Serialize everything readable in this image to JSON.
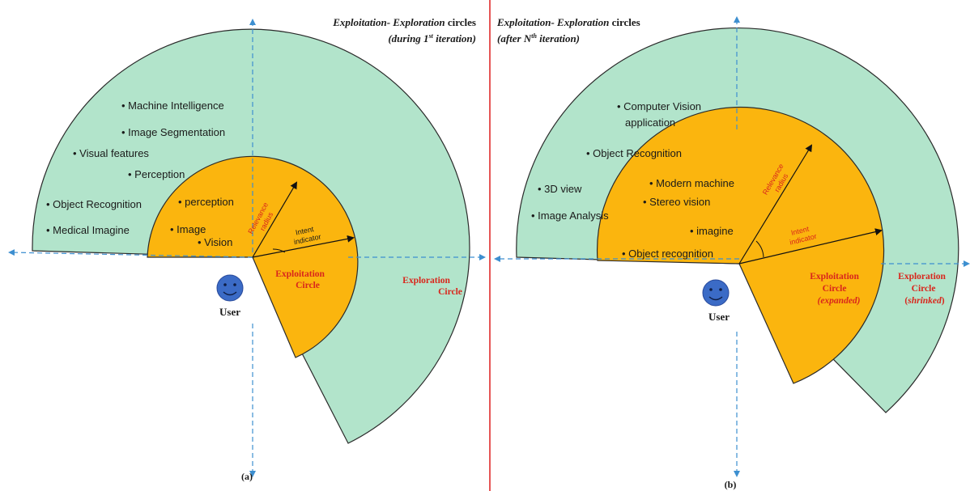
{
  "colors": {
    "exploration_fill": "#b2e4cb",
    "exploitation_fill": "#fbb50e",
    "outline": "#2a2a2a",
    "axis": "#3d8fd0",
    "divider": "#e02b2b",
    "red_text": "#d9261c",
    "user_face": "#3b6bc6"
  },
  "panel_a": {
    "title_line1_italic": "Exploitation- Exploration",
    "title_line1_rest": " circles",
    "title_line2_prefix": "(during 1",
    "title_line2_sup": "st",
    "title_line2_suffix": " iteration)",
    "caption": "(a)",
    "exploration_items": [
      "Machine Intelligence",
      "Image Segmentation",
      "Visual features",
      "Perception",
      "Object Recognition",
      "Medical Imagine"
    ],
    "exploitation_items": [
      "perception",
      "Image",
      "Vision"
    ],
    "relevance_label_1": "Relevance",
    "relevance_label_2": "radius",
    "intent_label_1": "Intent",
    "intent_label_2": "indicator",
    "exploitation_label_1": "Exploitation",
    "exploitation_label_2": "Circle",
    "exploration_label_1": "Exploration",
    "exploration_label_2": "Circle",
    "user_label": "User"
  },
  "panel_b": {
    "title_line1_italic": "Exploitation- Exploration",
    "title_line1_rest": " circles",
    "title_line2_prefix": "(after N",
    "title_line2_sup": "th",
    "title_line2_suffix": " iteration)",
    "caption": "(b)",
    "exploration_items": [
      "Computer Vision",
      "application",
      "Object Recognition",
      "3D view",
      "Image Analysis"
    ],
    "exploitation_items": [
      "Modern machine",
      "Stereo vision",
      "imagine",
      "Object  recognition"
    ],
    "relevance_label_1": "Relevance",
    "relevance_label_2": "radius",
    "intent_label_1": "Intent",
    "intent_label_2": "indicator",
    "exploitation_label_1": "Exploitation",
    "exploitation_label_2": "Circle",
    "exploitation_label_3": "(expanded)",
    "exploration_label_1": "Exploration",
    "exploration_label_2": "Circle",
    "exploration_label_3_open": "(",
    "exploration_label_3_italic": "shrinked",
    "exploration_label_3_close": ")",
    "user_label": "User"
  }
}
